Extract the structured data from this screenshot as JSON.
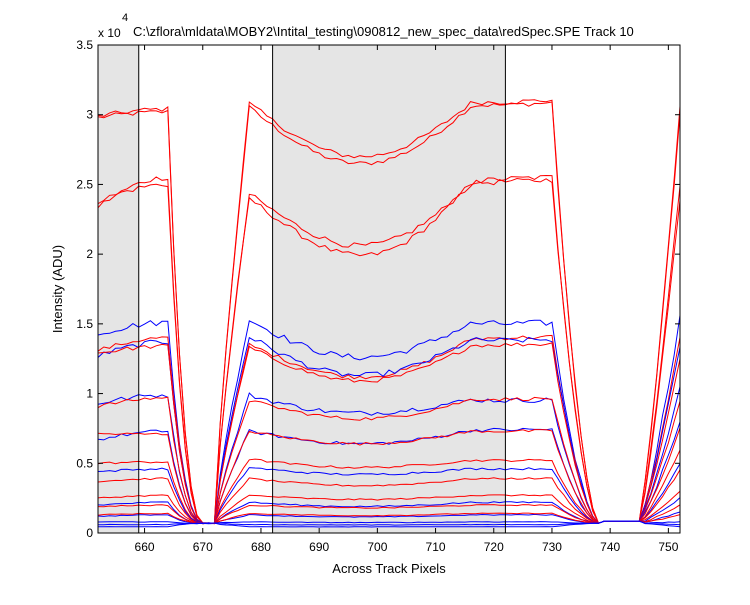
{
  "chart_data": {
    "type": "line",
    "title": "C:\\zflora\\mldata\\MOBY2\\Intital_testing\\090812_new_spec_data\\redSpec.SPE   Track 10",
    "xlabel": "Across Track Pixels",
    "ylabel": "Intensity (ADU)",
    "y_multiplier_label": "x 10",
    "y_multiplier_exponent": "4",
    "xlim": [
      652,
      752
    ],
    "ylim": [
      0,
      35000
    ],
    "xticks": [
      660,
      670,
      680,
      690,
      700,
      710,
      720,
      730,
      740,
      750
    ],
    "yticks": [
      0,
      5000,
      10000,
      15000,
      20000,
      25000,
      30000,
      35000
    ],
    "ytick_labels": [
      "0",
      "0.5",
      "1",
      "1.5",
      "2",
      "2.5",
      "3",
      "3.5"
    ],
    "shaded_regions": [
      [
        652,
        659
      ],
      [
        682,
        722
      ]
    ],
    "vertical_lines": [
      659,
      682,
      722
    ],
    "grid": false,
    "colors": {
      "red": "#ff0000",
      "blue": "#0000ff",
      "shade": "#e5e5e5"
    },
    "profile_breakpoints": {
      "x": [
        652,
        653,
        654,
        657,
        660,
        663,
        664,
        665,
        666,
        667,
        668,
        669,
        670,
        671,
        672,
        673,
        674,
        675,
        676,
        677,
        678,
        681,
        684,
        700,
        712,
        722,
        726,
        729,
        730,
        731,
        732,
        733,
        734,
        735,
        736,
        737,
        738,
        739,
        740,
        741,
        742,
        743,
        744,
        745,
        746,
        747,
        748,
        749,
        750,
        751,
        752
      ],
      "note_shape": [
        1.0,
        1.0,
        1.0,
        1.0,
        1.0,
        1.0,
        1.0,
        1.0,
        1.0,
        1.0,
        1.0,
        1.0,
        1.0,
        1.0,
        1.0,
        1.0,
        1.0,
        1.0,
        1.0,
        1.0,
        1.0,
        1.0,
        1.0,
        1.0,
        1.0,
        1.0,
        1.0,
        1.0,
        1.0,
        1.0,
        1.0,
        1.0,
        1.0,
        1.0,
        1.0,
        1.0,
        1.0,
        1.0,
        1.0,
        1.0,
        1.0,
        1.0,
        1.0,
        1.0,
        1.0,
        1.0,
        1.0,
        1.0,
        1.0,
        1.0,
        1.0
      ]
    },
    "series": [
      {
        "color": "red",
        "left": 29800,
        "right": 30700,
        "dip": 26500,
        "edge_lo": 30200,
        "edge_hi": 30500,
        "end": 30500,
        "jitter": 350
      },
      {
        "color": "red",
        "left": 29900,
        "right": 30900,
        "dip": 27000,
        "edge_lo": 30400,
        "edge_hi": 30800,
        "end": 30000,
        "jitter": 350
      },
      {
        "color": "red",
        "left": 23400,
        "right": 25400,
        "dip": 19900,
        "edge_lo": 25500,
        "edge_hi": 24000,
        "end": 25000,
        "jitter": 400
      },
      {
        "color": "red",
        "left": 23800,
        "right": 25200,
        "dip": 20600,
        "edge_lo": 25000,
        "edge_hi": 24300,
        "end": 24000,
        "jitter": 400
      },
      {
        "color": "blue",
        "left": 14300,
        "right": 15000,
        "dip": 12600,
        "edge_lo": 15100,
        "edge_hi": 15300,
        "end": 15500,
        "jitter": 450
      },
      {
        "color": "red",
        "left": 13100,
        "right": 14000,
        "dip": 11200,
        "edge_lo": 14000,
        "edge_hi": 13500,
        "end": 14000,
        "jitter": 300
      },
      {
        "color": "blue",
        "left": 12700,
        "right": 13800,
        "dip": 11300,
        "edge_lo": 13700,
        "edge_hi": 14100,
        "end": 13500,
        "jitter": 400
      },
      {
        "color": "red",
        "left": 12900,
        "right": 13500,
        "dip": 10900,
        "edge_lo": 13400,
        "edge_hi": 13300,
        "end": 12500,
        "jitter": 300
      },
      {
        "color": "blue",
        "left": 9300,
        "right": 9500,
        "dip": 8600,
        "edge_lo": 9900,
        "edge_hi": 9900,
        "end": 10500,
        "jitter": 350
      },
      {
        "color": "red",
        "left": 9100,
        "right": 9600,
        "dip": 8200,
        "edge_lo": 9700,
        "edge_hi": 9500,
        "end": 9500,
        "jitter": 250
      },
      {
        "color": "blue",
        "left": 6700,
        "right": 7400,
        "dip": 6400,
        "edge_lo": 7300,
        "edge_hi": 7300,
        "end": 8000,
        "jitter": 250
      },
      {
        "color": "red",
        "left": 7100,
        "right": 7300,
        "dip": 6400,
        "edge_lo": 7100,
        "edge_hi": 7300,
        "end": 7500,
        "jitter": 200
      },
      {
        "color": "red",
        "left": 5000,
        "right": 5200,
        "dip": 4700,
        "edge_lo": 5100,
        "edge_hi": 5300,
        "end": 6000,
        "jitter": 150
      },
      {
        "color": "blue",
        "left": 4400,
        "right": 4600,
        "dip": 4200,
        "edge_lo": 4600,
        "edge_hi": 4700,
        "end": 5000,
        "jitter": 150
      },
      {
        "color": "red",
        "left": 3700,
        "right": 3900,
        "dip": 3400,
        "edge_lo": 3900,
        "edge_hi": 3900,
        "end": 4500,
        "jitter": 120
      },
      {
        "color": "red",
        "left": 2500,
        "right": 2700,
        "dip": 2400,
        "edge_lo": 2700,
        "edge_hi": 2700,
        "end": 3000,
        "jitter": 100
      },
      {
        "color": "blue",
        "left": 2000,
        "right": 2200,
        "dip": 1900,
        "edge_lo": 2200,
        "edge_hi": 2200,
        "end": 2500,
        "jitter": 100
      },
      {
        "color": "red",
        "left": 1900,
        "right": 2000,
        "dip": 1800,
        "edge_lo": 2000,
        "edge_hi": 2000,
        "end": 2000,
        "jitter": 80
      },
      {
        "color": "blue",
        "left": 1200,
        "right": 1300,
        "dip": 1150,
        "edge_lo": 1300,
        "edge_hi": 1300,
        "end": 1500,
        "jitter": 60
      },
      {
        "color": "red",
        "left": 1300,
        "right": 1400,
        "dip": 1250,
        "edge_lo": 1400,
        "edge_hi": 1400,
        "end": 1300,
        "jitter": 60
      },
      {
        "color": "blue",
        "left": 800,
        "right": 800,
        "dip": 750,
        "edge_lo": 800,
        "edge_hi": 800,
        "end": 800,
        "jitter": 40
      },
      {
        "color": "blue",
        "left": 600,
        "right": 600,
        "dip": 580,
        "edge_lo": 600,
        "edge_hi": 600,
        "end": 600,
        "jitter": 30
      },
      {
        "color": "blue",
        "left": 450,
        "right": 450,
        "dip": 440,
        "edge_lo": 450,
        "edge_hi": 450,
        "end": 450,
        "jitter": 20
      }
    ]
  }
}
